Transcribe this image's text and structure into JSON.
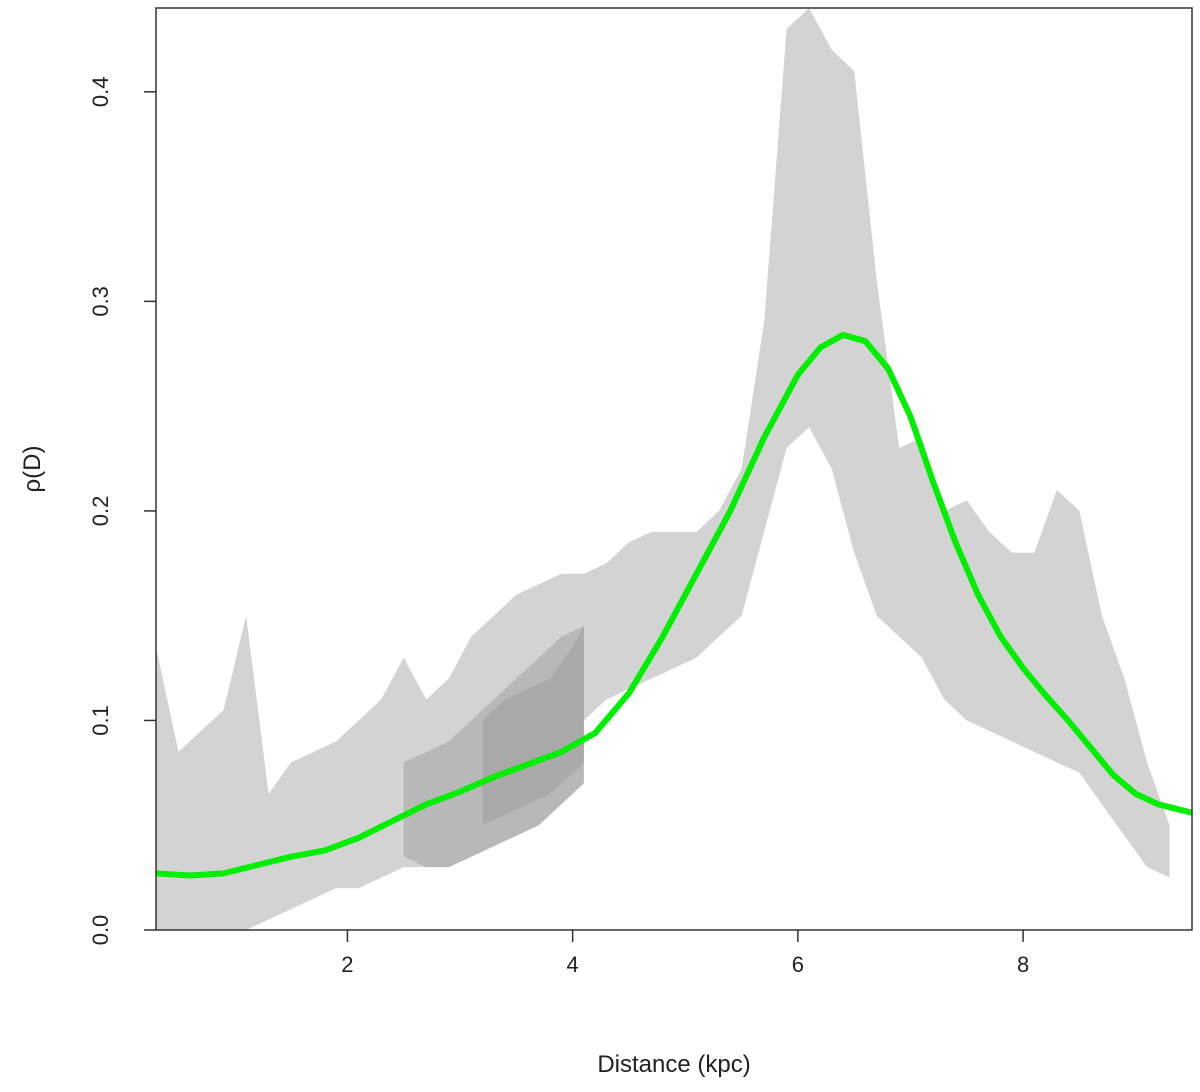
{
  "chart_data": {
    "type": "area",
    "title": "",
    "xlabel": "Distance (kpc)",
    "ylabel": "ρ(D)",
    "xlim": [
      0.3,
      9.5
    ],
    "ylim": [
      0.0,
      0.44
    ],
    "x_ticks": [
      2,
      4,
      6,
      8
    ],
    "y_ticks": [
      0.0,
      0.1,
      0.2,
      0.3,
      0.4
    ],
    "x_tick_labels": [
      "2",
      "4",
      "6",
      "8"
    ],
    "y_tick_labels": [
      "0.0",
      "0.1",
      "0.2",
      "0.3",
      "0.4"
    ],
    "grid": false,
    "legend": "none",
    "colors": {
      "curve": "#00ee00",
      "band_light": "#d3d3d3",
      "band_mid": "#b8b8b8",
      "band_dark": "#a9a9a9"
    },
    "series": [
      {
        "kind": "band",
        "style": "light",
        "x": [
          0.3,
          0.5,
          0.7,
          0.9,
          1.1,
          1.3,
          1.5,
          1.7,
          1.9,
          2.1,
          2.3,
          2.5,
          2.7,
          2.9,
          3.1,
          3.3,
          3.5,
          3.7,
          3.9,
          4.1,
          4.3,
          4.5,
          4.7,
          4.9,
          5.1,
          5.3,
          5.5,
          5.7,
          5.9,
          6.1,
          6.3,
          6.5,
          6.7,
          6.9,
          7.1,
          7.3,
          7.5,
          7.7,
          7.9,
          8.1,
          8.3,
          8.5,
          8.7,
          8.9,
          9.1,
          9.3
        ],
        "lower": [
          0.0,
          0.0,
          0.0,
          0.0,
          0.0,
          0.005,
          0.01,
          0.015,
          0.02,
          0.02,
          0.025,
          0.03,
          0.03,
          0.035,
          0.04,
          0.05,
          0.06,
          0.065,
          0.08,
          0.1,
          0.11,
          0.115,
          0.12,
          0.125,
          0.13,
          0.14,
          0.15,
          0.19,
          0.23,
          0.24,
          0.22,
          0.18,
          0.15,
          0.14,
          0.13,
          0.11,
          0.1,
          0.095,
          0.09,
          0.085,
          0.08,
          0.075,
          0.06,
          0.045,
          0.03,
          0.025
        ],
        "upper": [
          0.135,
          0.085,
          0.095,
          0.105,
          0.15,
          0.065,
          0.08,
          0.085,
          0.09,
          0.1,
          0.11,
          0.13,
          0.11,
          0.12,
          0.14,
          0.15,
          0.16,
          0.165,
          0.17,
          0.17,
          0.175,
          0.185,
          0.19,
          0.19,
          0.19,
          0.2,
          0.22,
          0.29,
          0.43,
          0.44,
          0.42,
          0.41,
          0.31,
          0.23,
          0.235,
          0.2,
          0.205,
          0.19,
          0.18,
          0.18,
          0.21,
          0.2,
          0.15,
          0.12,
          0.08,
          0.05
        ]
      },
      {
        "kind": "band",
        "style": "mid",
        "x": [
          2.5,
          2.7,
          2.9,
          3.1,
          3.3,
          3.5,
          3.7,
          3.9,
          4.1
        ],
        "lower": [
          0.035,
          0.03,
          0.03,
          0.035,
          0.04,
          0.045,
          0.05,
          0.06,
          0.07
        ],
        "upper": [
          0.08,
          0.085,
          0.09,
          0.1,
          0.11,
          0.12,
          0.13,
          0.14,
          0.145
        ]
      },
      {
        "kind": "band",
        "style": "dark",
        "x": [
          3.2,
          3.4,
          3.6,
          3.8,
          4.0,
          4.1
        ],
        "lower": [
          0.05,
          0.055,
          0.06,
          0.065,
          0.075,
          0.08
        ],
        "upper": [
          0.1,
          0.11,
          0.115,
          0.12,
          0.135,
          0.145
        ]
      },
      {
        "kind": "line",
        "style": "curve",
        "x": [
          0.3,
          0.6,
          0.9,
          1.2,
          1.5,
          1.8,
          2.1,
          2.4,
          2.7,
          3.0,
          3.3,
          3.6,
          3.9,
          4.2,
          4.5,
          4.8,
          5.1,
          5.4,
          5.7,
          6.0,
          6.2,
          6.4,
          6.6,
          6.8,
          7.0,
          7.2,
          7.4,
          7.6,
          7.8,
          8.0,
          8.2,
          8.4,
          8.6,
          8.8,
          9.0,
          9.2,
          9.5
        ],
        "y": [
          0.027,
          0.026,
          0.027,
          0.031,
          0.035,
          0.038,
          0.044,
          0.052,
          0.06,
          0.066,
          0.073,
          0.079,
          0.085,
          0.094,
          0.113,
          0.14,
          0.17,
          0.2,
          0.235,
          0.265,
          0.278,
          0.284,
          0.281,
          0.268,
          0.245,
          0.214,
          0.185,
          0.16,
          0.14,
          0.125,
          0.112,
          0.1,
          0.087,
          0.074,
          0.065,
          0.06,
          0.056
        ]
      }
    ]
  }
}
